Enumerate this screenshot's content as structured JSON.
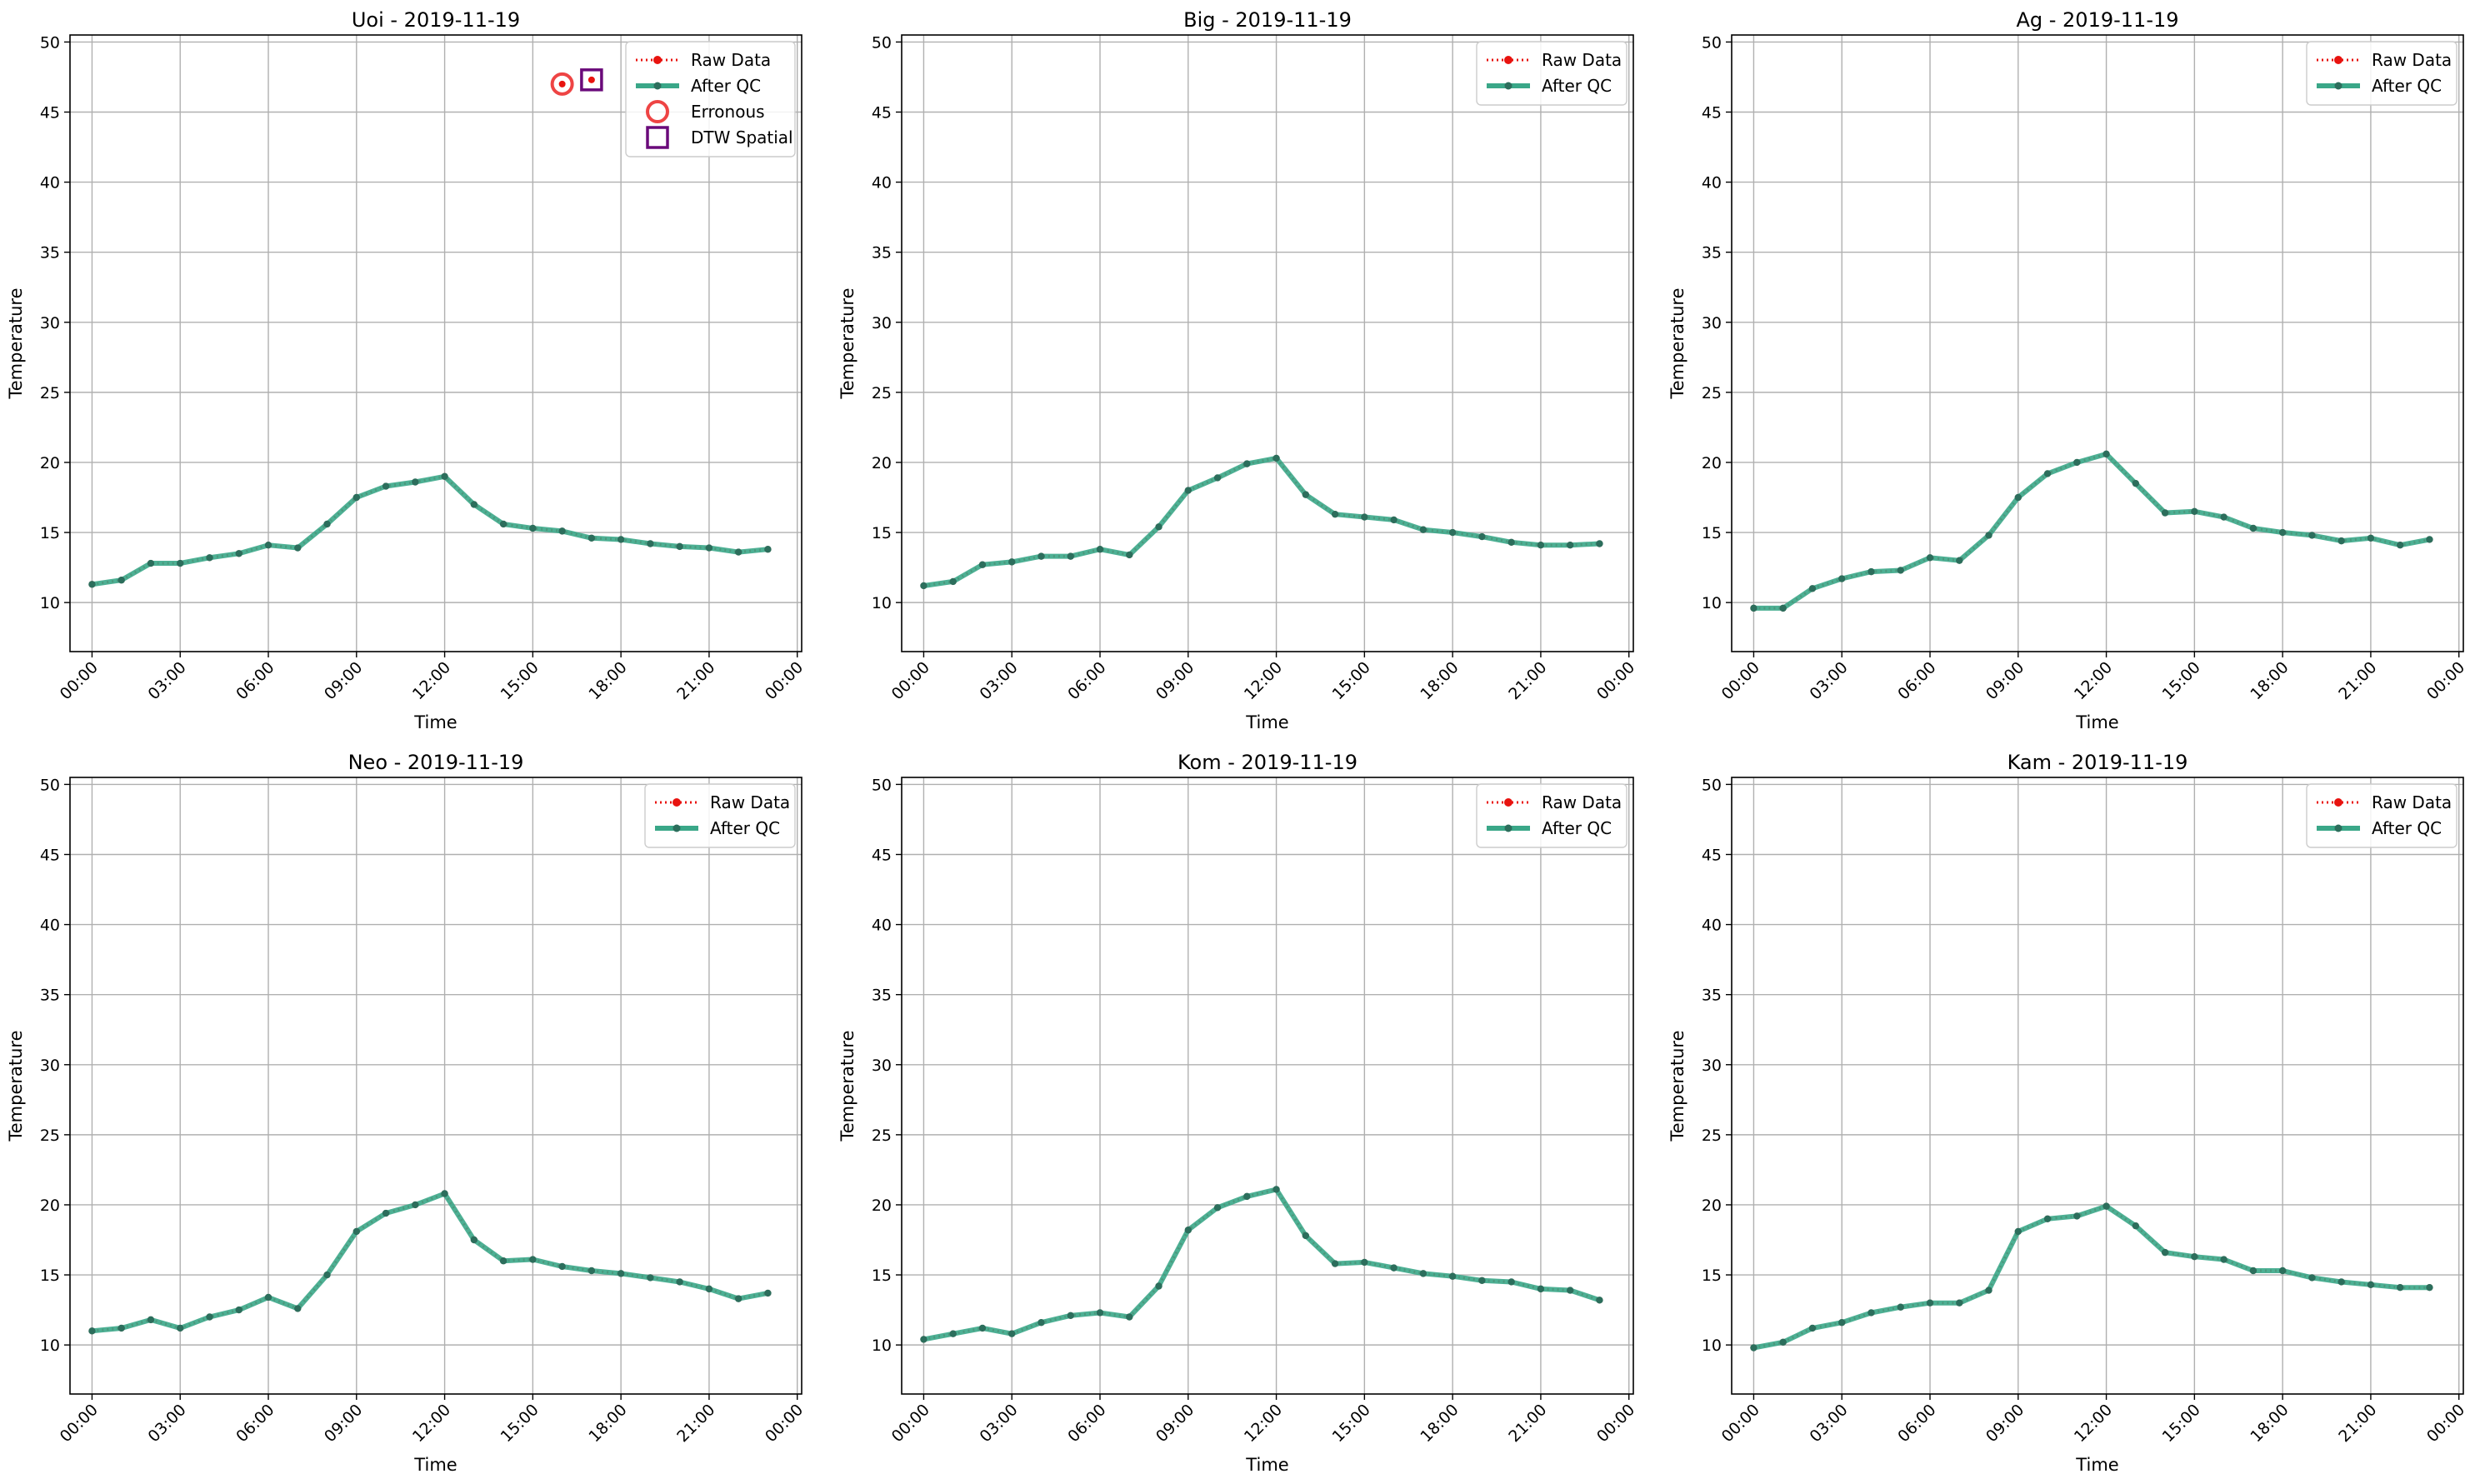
{
  "figure": {
    "date": "2019-11-19"
  },
  "colors": {
    "raw": "#e8130f",
    "after_qc": "#3aa788",
    "after_qc_marker": "#2c6e5c",
    "erroneous": "#ee4444",
    "dtw_spatial": "#6a0a7a",
    "grid": "#b0b0b0"
  },
  "legend_labels": {
    "raw": "Raw Data",
    "after_qc": "After QC",
    "erroneous": "Erronous",
    "dtw_spatial": "DTW Spatial"
  },
  "chart_data": [
    {
      "type": "line",
      "title": "Uoi - 2019-11-19",
      "xlabel": "Time",
      "ylabel": "Temperature",
      "ylim": [
        6.5,
        50.5
      ],
      "yticks": [
        10,
        15,
        20,
        25,
        30,
        35,
        40,
        45,
        50
      ],
      "xticks": [
        "00:00",
        "03:00",
        "06:00",
        "09:00",
        "12:00",
        "15:00",
        "18:00",
        "21:00",
        "00:00"
      ],
      "grid": true,
      "legend_position": "top-right",
      "x_hours": [
        0,
        1,
        2,
        3,
        4,
        5,
        6,
        7,
        8,
        9,
        10,
        11,
        12,
        13,
        14,
        15,
        16,
        17,
        18,
        19,
        20,
        21,
        22,
        23
      ],
      "series": [
        {
          "name": "Raw Data",
          "values": [
            11.3,
            11.6,
            12.8,
            12.8,
            13.2,
            13.5,
            14.1,
            13.9,
            15.6,
            17.5,
            18.3,
            18.6,
            19.0,
            17.0,
            15.6,
            15.3,
            15.1,
            14.6,
            14.5,
            14.2,
            14.0,
            13.9,
            13.6,
            13.8
          ]
        },
        {
          "name": "After QC",
          "values": [
            11.3,
            11.6,
            12.8,
            12.8,
            13.2,
            13.5,
            14.1,
            13.9,
            15.6,
            17.5,
            18.3,
            18.6,
            19.0,
            17.0,
            15.6,
            15.3,
            15.1,
            14.6,
            14.5,
            14.2,
            14.0,
            13.9,
            13.6,
            13.8
          ]
        }
      ],
      "flags": {
        "erroneous": [
          {
            "x": 16,
            "y": 47.0
          }
        ],
        "dtw_spatial": [
          {
            "x": 17,
            "y": 47.3
          }
        ]
      }
    },
    {
      "type": "line",
      "title": "Big - 2019-11-19",
      "xlabel": "Time",
      "ylabel": "Temperature",
      "ylim": [
        6.5,
        50.5
      ],
      "yticks": [
        10,
        15,
        20,
        25,
        30,
        35,
        40,
        45,
        50
      ],
      "xticks": [
        "00:00",
        "03:00",
        "06:00",
        "09:00",
        "12:00",
        "15:00",
        "18:00",
        "21:00",
        "00:00"
      ],
      "grid": true,
      "legend_position": "top-right",
      "x_hours": [
        0,
        1,
        2,
        3,
        4,
        5,
        6,
        7,
        8,
        9,
        10,
        11,
        12,
        13,
        14,
        15,
        16,
        17,
        18,
        19,
        20,
        21,
        22,
        23
      ],
      "series": [
        {
          "name": "Raw Data",
          "values": [
            11.2,
            11.5,
            12.7,
            12.9,
            13.3,
            13.3,
            13.8,
            13.4,
            15.4,
            18.0,
            18.9,
            19.9,
            20.3,
            17.7,
            16.3,
            16.1,
            15.9,
            15.2,
            15.0,
            14.7,
            14.3,
            14.1,
            14.1,
            14.2
          ]
        },
        {
          "name": "After QC",
          "values": [
            11.2,
            11.5,
            12.7,
            12.9,
            13.3,
            13.3,
            13.8,
            13.4,
            15.4,
            18.0,
            18.9,
            19.9,
            20.3,
            17.7,
            16.3,
            16.1,
            15.9,
            15.2,
            15.0,
            14.7,
            14.3,
            14.1,
            14.1,
            14.2
          ]
        }
      ]
    },
    {
      "type": "line",
      "title": "Ag - 2019-11-19",
      "xlabel": "Time",
      "ylabel": "Temperature",
      "ylim": [
        6.5,
        50.5
      ],
      "yticks": [
        10,
        15,
        20,
        25,
        30,
        35,
        40,
        45,
        50
      ],
      "xticks": [
        "00:00",
        "03:00",
        "06:00",
        "09:00",
        "12:00",
        "15:00",
        "18:00",
        "21:00",
        "00:00"
      ],
      "grid": true,
      "legend_position": "top-right",
      "x_hours": [
        0,
        1,
        2,
        3,
        4,
        5,
        6,
        7,
        8,
        9,
        10,
        11,
        12,
        13,
        14,
        15,
        16,
        17,
        18,
        19,
        20,
        21,
        22,
        23
      ],
      "series": [
        {
          "name": "Raw Data",
          "values": [
            9.6,
            9.6,
            11.0,
            11.7,
            12.2,
            12.3,
            13.2,
            13.0,
            14.8,
            17.5,
            19.2,
            20.0,
            20.6,
            18.5,
            16.4,
            16.5,
            16.1,
            15.3,
            15.0,
            14.8,
            14.4,
            14.6,
            14.1,
            14.5
          ]
        },
        {
          "name": "After QC",
          "values": [
            9.6,
            9.6,
            11.0,
            11.7,
            12.2,
            12.3,
            13.2,
            13.0,
            14.8,
            17.5,
            19.2,
            20.0,
            20.6,
            18.5,
            16.4,
            16.5,
            16.1,
            15.3,
            15.0,
            14.8,
            14.4,
            14.6,
            14.1,
            14.5
          ]
        }
      ]
    },
    {
      "type": "line",
      "title": "Neo - 2019-11-19",
      "xlabel": "Time",
      "ylabel": "Temperature",
      "ylim": [
        6.5,
        50.5
      ],
      "yticks": [
        10,
        15,
        20,
        25,
        30,
        35,
        40,
        45,
        50
      ],
      "xticks": [
        "00:00",
        "03:00",
        "06:00",
        "09:00",
        "12:00",
        "15:00",
        "18:00",
        "21:00",
        "00:00"
      ],
      "grid": true,
      "legend_position": "top-right",
      "x_hours": [
        0,
        1,
        2,
        3,
        4,
        5,
        6,
        7,
        8,
        9,
        10,
        11,
        12,
        13,
        14,
        15,
        16,
        17,
        18,
        19,
        20,
        21,
        22,
        23
      ],
      "series": [
        {
          "name": "Raw Data",
          "values": [
            11.0,
            11.2,
            11.8,
            11.2,
            12.0,
            12.5,
            13.4,
            12.6,
            15.0,
            18.1,
            19.4,
            20.0,
            20.8,
            17.5,
            16.0,
            16.1,
            15.6,
            15.3,
            15.1,
            14.8,
            14.5,
            14.0,
            13.3,
            13.7
          ]
        },
        {
          "name": "After QC",
          "values": [
            11.0,
            11.2,
            11.8,
            11.2,
            12.0,
            12.5,
            13.4,
            12.6,
            15.0,
            18.1,
            19.4,
            20.0,
            20.8,
            17.5,
            16.0,
            16.1,
            15.6,
            15.3,
            15.1,
            14.8,
            14.5,
            14.0,
            13.3,
            13.7
          ]
        }
      ]
    },
    {
      "type": "line",
      "title": "Kom - 2019-11-19",
      "xlabel": "Time",
      "ylabel": "Temperature",
      "ylim": [
        6.5,
        50.5
      ],
      "yticks": [
        10,
        15,
        20,
        25,
        30,
        35,
        40,
        45,
        50
      ],
      "xticks": [
        "00:00",
        "03:00",
        "06:00",
        "09:00",
        "12:00",
        "15:00",
        "18:00",
        "21:00",
        "00:00"
      ],
      "grid": true,
      "legend_position": "top-right",
      "x_hours": [
        0,
        1,
        2,
        3,
        4,
        5,
        6,
        7,
        8,
        9,
        10,
        11,
        12,
        13,
        14,
        15,
        16,
        17,
        18,
        19,
        20,
        21,
        22,
        23
      ],
      "series": [
        {
          "name": "Raw Data",
          "values": [
            10.4,
            10.8,
            11.2,
            10.8,
            11.6,
            12.1,
            12.3,
            12.0,
            14.2,
            18.2,
            19.8,
            20.6,
            21.1,
            17.8,
            15.8,
            15.9,
            15.5,
            15.1,
            14.9,
            14.6,
            14.5,
            14.0,
            13.9,
            13.2
          ]
        },
        {
          "name": "After QC",
          "values": [
            10.4,
            10.8,
            11.2,
            10.8,
            11.6,
            12.1,
            12.3,
            12.0,
            14.2,
            18.2,
            19.8,
            20.6,
            21.1,
            17.8,
            15.8,
            15.9,
            15.5,
            15.1,
            14.9,
            14.6,
            14.5,
            14.0,
            13.9,
            13.2
          ]
        }
      ]
    },
    {
      "type": "line",
      "title": "Kam - 2019-11-19",
      "xlabel": "Time",
      "ylabel": "Temperature",
      "ylim": [
        6.5,
        50.5
      ],
      "yticks": [
        10,
        15,
        20,
        25,
        30,
        35,
        40,
        45,
        50
      ],
      "xticks": [
        "00:00",
        "03:00",
        "06:00",
        "09:00",
        "12:00",
        "15:00",
        "18:00",
        "21:00",
        "00:00"
      ],
      "grid": true,
      "legend_position": "top-right",
      "x_hours": [
        0,
        1,
        2,
        3,
        4,
        5,
        6,
        7,
        8,
        9,
        10,
        11,
        12,
        13,
        14,
        15,
        16,
        17,
        18,
        19,
        20,
        21,
        22,
        23
      ],
      "series": [
        {
          "name": "Raw Data",
          "values": [
            9.8,
            10.2,
            11.2,
            11.6,
            12.3,
            12.7,
            13.0,
            13.0,
            13.9,
            18.1,
            19.0,
            19.2,
            19.9,
            18.5,
            16.6,
            16.3,
            16.1,
            15.3,
            15.3,
            14.8,
            14.5,
            14.3,
            14.1,
            14.1
          ]
        },
        {
          "name": "After QC",
          "values": [
            9.8,
            10.2,
            11.2,
            11.6,
            12.3,
            12.7,
            13.0,
            13.0,
            13.9,
            18.1,
            19.0,
            19.2,
            19.9,
            18.5,
            16.6,
            16.3,
            16.1,
            15.3,
            15.3,
            14.8,
            14.5,
            14.3,
            14.1,
            14.1
          ]
        }
      ]
    }
  ]
}
